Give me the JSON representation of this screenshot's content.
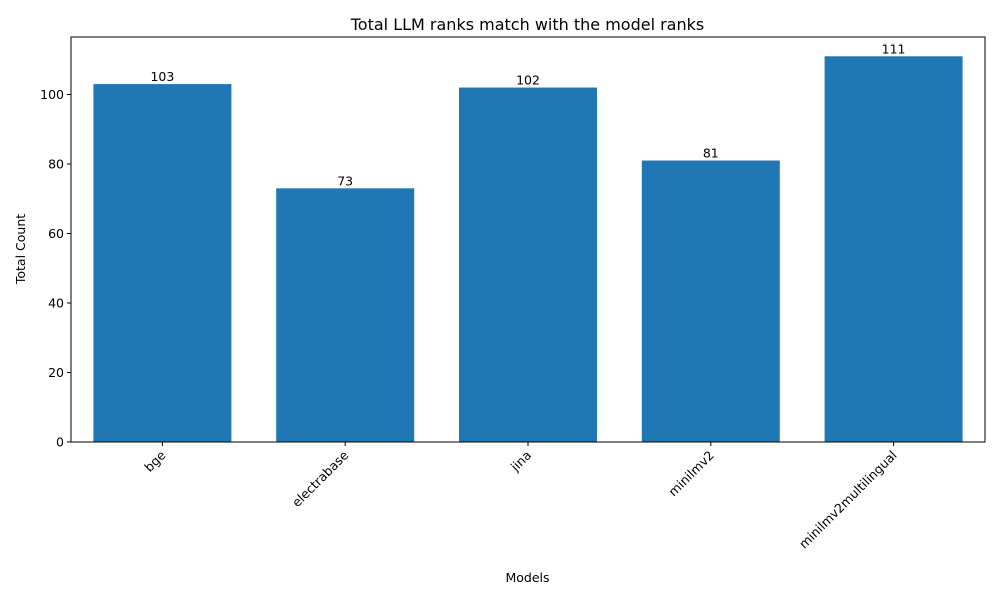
{
  "chart_data": {
    "type": "bar",
    "title": "Total LLM ranks match with the model ranks",
    "xlabel": "Models",
    "ylabel": "Total Count",
    "categories": [
      "bge",
      "electrabase",
      "jina",
      "minilmv2",
      "minilmv2multilingual"
    ],
    "values": [
      103,
      73,
      102,
      81,
      111
    ],
    "ylim": [
      0,
      116.55
    ],
    "yticks": [
      0,
      20,
      40,
      60,
      80,
      100
    ],
    "grid": false,
    "legend": "none",
    "bar_color": "#1f77b4",
    "xtick_rotation_deg": 45
  }
}
